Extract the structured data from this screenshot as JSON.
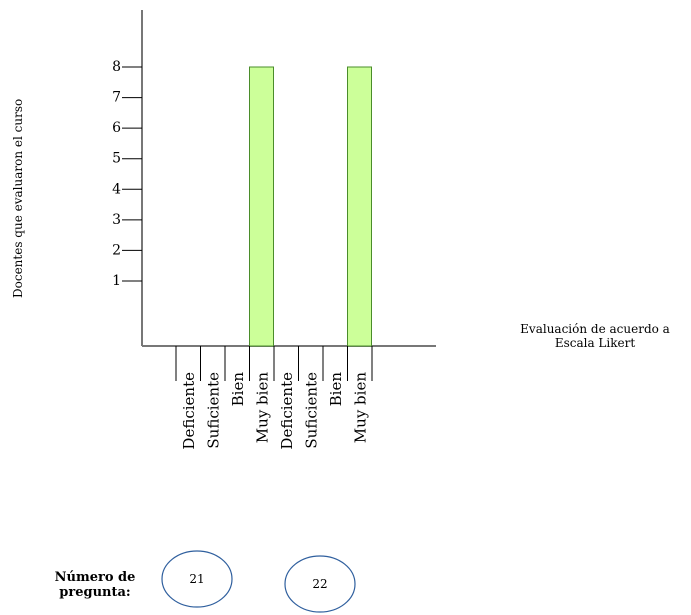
{
  "chart_data": {
    "type": "bar",
    "ylabel": "Docentes que evaluaron el curso",
    "xlabel": [
      "Evaluación de acuerdo a",
      "Escala Likert"
    ],
    "y_ticks": [
      1,
      2,
      3,
      4,
      5,
      6,
      7,
      8
    ],
    "ylim": [
      0,
      8
    ],
    "colors": {
      "bar_fill": "#ccff99",
      "bar_stroke": "#4a8c2a",
      "axis": "#777777"
    },
    "groups": [
      {
        "question": "21",
        "categories": [
          "Deficiente",
          "Suficiente",
          "Bien",
          "Muy bien"
        ],
        "values": [
          0,
          0,
          0,
          8
        ]
      },
      {
        "question": "22",
        "categories": [
          "Deficiente",
          "Suficiente",
          "Bien",
          "Muy bien"
        ],
        "values": [
          0,
          0,
          0,
          8
        ]
      }
    ],
    "question_label": [
      "Número de",
      "pregunta:"
    ]
  }
}
